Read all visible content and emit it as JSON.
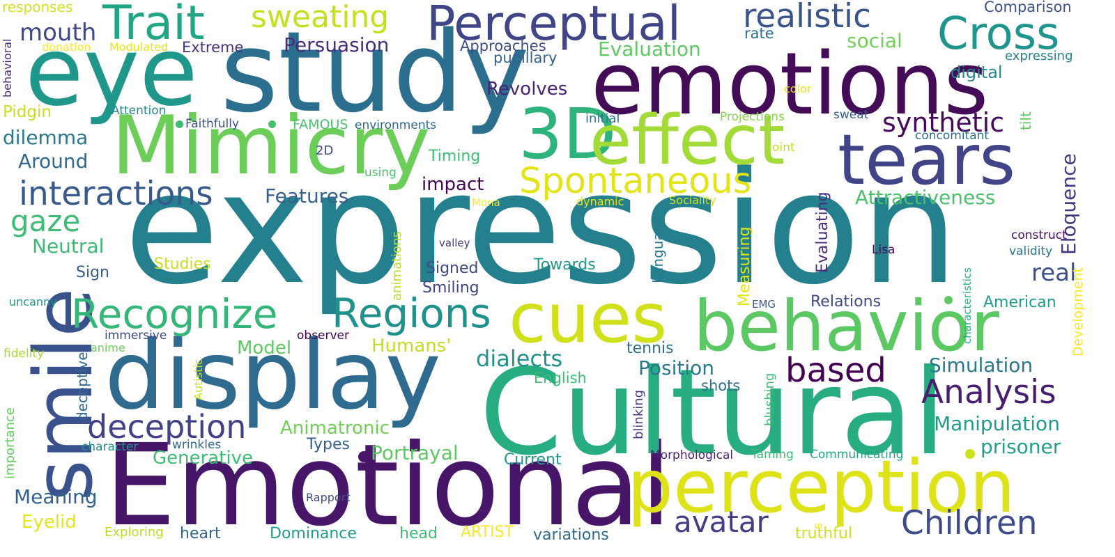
{
  "words": [
    {
      "text": "expression",
      "color": "#25808e"
    },
    {
      "text": "Emotional",
      "color": "#471669"
    },
    {
      "text": "eye",
      "color": "#1f988b"
    },
    {
      "text": "study",
      "color": "#2c6e8e"
    },
    {
      "text": "emotions",
      "color": "#440b57"
    },
    {
      "text": "Cultural",
      "color": "#27ad81"
    },
    {
      "text": "display",
      "color": "#2f6b8e"
    },
    {
      "text": "smile",
      "color": "#3a528b"
    },
    {
      "text": "Mimicry",
      "color": "#6ccd59"
    },
    {
      "text": "3D",
      "color": "#2db37b"
    },
    {
      "text": "effect",
      "color": "#a2da37"
    },
    {
      "text": "tears",
      "color": "#414487"
    },
    {
      "text": "perception",
      "color": "#dde318"
    },
    {
      "text": "behavior",
      "color": "#5cc863"
    },
    {
      "text": "cues",
      "color": "#d0e11c"
    },
    {
      "text": "Perceptual",
      "color": "#404588"
    },
    {
      "text": "Trait",
      "color": "#21a685"
    },
    {
      "text": "Cross",
      "color": "#1f958b"
    },
    {
      "text": "realistic",
      "color": "#39558c"
    },
    {
      "text": "sweating",
      "color": "#c5e021"
    },
    {
      "text": "Recognize",
      "color": "#34b679"
    },
    {
      "text": "Regions",
      "color": "#20928c"
    },
    {
      "text": "interactions",
      "color": "#38598c"
    },
    {
      "text": "Spontaneous",
      "color": "#e2e418"
    },
    {
      "text": "Analysis",
      "color": "#481f70"
    },
    {
      "text": "Children",
      "color": "#3e4a89"
    },
    {
      "text": "deception",
      "color": "#424086"
    },
    {
      "text": "avatar",
      "color": "#433e85"
    },
    {
      "text": "based",
      "color": "#440154"
    },
    {
      "text": "gaze",
      "color": "#3dbc74"
    },
    {
      "text": "mouth",
      "color": "#3f4788"
    },
    {
      "text": "synthetic",
      "color": "#46085c"
    },
    {
      "text": "Eloquence",
      "color": "#453781"
    },
    {
      "text": "Persuasion",
      "color": "#472d7b"
    },
    {
      "text": "Evaluation",
      "color": "#5ec962"
    },
    {
      "text": "social",
      "color": "#73d056"
    },
    {
      "text": "Attractiveness",
      "color": "#4ac16d"
    },
    {
      "text": "dialects",
      "color": "#21918c"
    },
    {
      "text": "Simulation",
      "color": "#2a788e"
    },
    {
      "text": "Manipulation",
      "color": "#1e9b8a"
    },
    {
      "text": "prisoner",
      "color": "#1fa188"
    },
    {
      "text": "Neutral",
      "color": "#3bbb75"
    },
    {
      "text": "Features",
      "color": "#355f8d"
    },
    {
      "text": "Revolves",
      "color": "#482475"
    },
    {
      "text": "Approaches",
      "color": "#3e4c8a"
    },
    {
      "text": "pupillary",
      "color": "#34618d"
    },
    {
      "text": "digital",
      "color": "#24868e"
    },
    {
      "text": "rate",
      "color": "#2e6e8e"
    },
    {
      "text": "Comparison",
      "color": "#3b528b"
    },
    {
      "text": "expressing",
      "color": "#25838e"
    },
    {
      "text": "responses",
      "color": "#d2e21b"
    },
    {
      "text": "donation",
      "color": "#fde725"
    },
    {
      "text": "Modulated",
      "color": "#e5e419"
    },
    {
      "text": "Extreme",
      "color": "#46327e"
    },
    {
      "text": "behavioral",
      "color": "#482979"
    },
    {
      "text": "Pidgin",
      "color": "#c8e020"
    },
    {
      "text": "Attention",
      "color": "#228b8d"
    },
    {
      "text": "Faithfully",
      "color": "#3b528b"
    },
    {
      "text": "FAMOUS",
      "color": "#4ac16d"
    },
    {
      "text": "environments",
      "color": "#31668e"
    },
    {
      "text": "initial",
      "color": "#2c728e"
    },
    {
      "text": "Projections",
      "color": "#86d549"
    },
    {
      "text": "sweat",
      "color": "#355f8d"
    },
    {
      "text": "concomitant",
      "color": "#2d708e"
    },
    {
      "text": "tilt",
      "color": "#5ec962"
    },
    {
      "text": "color",
      "color": "#e5e419"
    },
    {
      "text": "dilemma",
      "color": "#29788e"
    },
    {
      "text": "Around",
      "color": "#30698e"
    },
    {
      "text": "2D",
      "color": "#3f4788"
    },
    {
      "text": "using",
      "color": "#4ac16d"
    },
    {
      "text": "Timing",
      "color": "#3dbc74"
    },
    {
      "text": "Joint",
      "color": "#c2df23"
    },
    {
      "text": "impact",
      "color": "#450457"
    },
    {
      "text": "Mona",
      "color": "#fde725"
    },
    {
      "text": "dynamic",
      "color": "#e5e419"
    },
    {
      "text": "Sociality",
      "color": "#d2e21b"
    },
    {
      "text": "Evaluating",
      "color": "#472d7b"
    },
    {
      "text": "Measuring",
      "color": "#e2e418"
    },
    {
      "text": "Language",
      "color": "#2a788e"
    },
    {
      "text": "animations",
      "color": "#b8de29"
    },
    {
      "text": "valley",
      "color": "#443983"
    },
    {
      "text": "Signed",
      "color": "#3e4989"
    },
    {
      "text": "Towards",
      "color": "#1f968b"
    },
    {
      "text": "Smiling",
      "color": "#404688"
    },
    {
      "text": "Sign",
      "color": "#365c8d"
    },
    {
      "text": "Studies",
      "color": "#c8e020"
    },
    {
      "text": "real",
      "color": "#3b518b"
    },
    {
      "text": "Lisa",
      "color": "#46085c"
    },
    {
      "text": "construct",
      "color": "#460b5e"
    },
    {
      "text": "validity",
      "color": "#2c728e"
    },
    {
      "text": "Development",
      "color": "#fde725"
    },
    {
      "text": "characteristics",
      "color": "#29af7f"
    },
    {
      "text": "American",
      "color": "#1e9b8a"
    },
    {
      "text": "Relations",
      "color": "#3e4a89"
    },
    {
      "text": "EMG",
      "color": "#39568c"
    },
    {
      "text": "uncanny",
      "color": "#1f988b"
    },
    {
      "text": "immersive",
      "color": "#3e4989"
    },
    {
      "text": "anime",
      "color": "#6ccd59"
    },
    {
      "text": "observer",
      "color": "#440256"
    },
    {
      "text": "Model",
      "color": "#5ec962"
    },
    {
      "text": "Humans'",
      "color": "#c2df23"
    },
    {
      "text": "tennis",
      "color": "#2d708e"
    },
    {
      "text": "Position",
      "color": "#2a788e"
    },
    {
      "text": "fidelity",
      "color": "#a8db34"
    },
    {
      "text": "deceptive",
      "color": "#306a8e"
    },
    {
      "text": "Autistic",
      "color": "#c8e020"
    },
    {
      "text": "importance",
      "color": "#63cb5f"
    },
    {
      "text": "English",
      "color": "#3dbc74"
    },
    {
      "text": "shots",
      "color": "#2e6f8e"
    },
    {
      "text": "blushing",
      "color": "#3dbc74"
    },
    {
      "text": "blinking",
      "color": "#443b84"
    },
    {
      "text": "Animatronic",
      "color": "#73d056"
    },
    {
      "text": "Types",
      "color": "#34618d"
    },
    {
      "text": "character",
      "color": "#21918c"
    },
    {
      "text": "wrinkles",
      "color": "#306a8e"
    },
    {
      "text": "Generative",
      "color": "#3dbc74"
    },
    {
      "text": "Portrayal",
      "color": "#5ec962"
    },
    {
      "text": "Current",
      "color": "#1f9a8a"
    },
    {
      "text": "Morphological",
      "color": "#482374"
    },
    {
      "text": "Taming",
      "color": "#3bbb75"
    },
    {
      "text": "Communicating",
      "color": "#21a585"
    },
    {
      "text": "Meaning",
      "color": "#33638d"
    },
    {
      "text": "Rapport",
      "color": "#3e4c8a"
    },
    {
      "text": "Eyelid",
      "color": "#e7e419"
    },
    {
      "text": "Exploring",
      "color": "#bddf26"
    },
    {
      "text": "heart",
      "color": "#32658e"
    },
    {
      "text": "Dominance",
      "color": "#1f9e89"
    },
    {
      "text": "head",
      "color": "#3dbc74"
    },
    {
      "text": "ARTIST",
      "color": "#fde725"
    },
    {
      "text": "variations",
      "color": "#30698e"
    },
    {
      "text": "s",
      "color": "#fde725"
    },
    {
      "text": "truthful",
      "color": "#cde11d"
    },
    {
      "text": "dots",
      "color": "#3dbc74"
    }
  ]
}
